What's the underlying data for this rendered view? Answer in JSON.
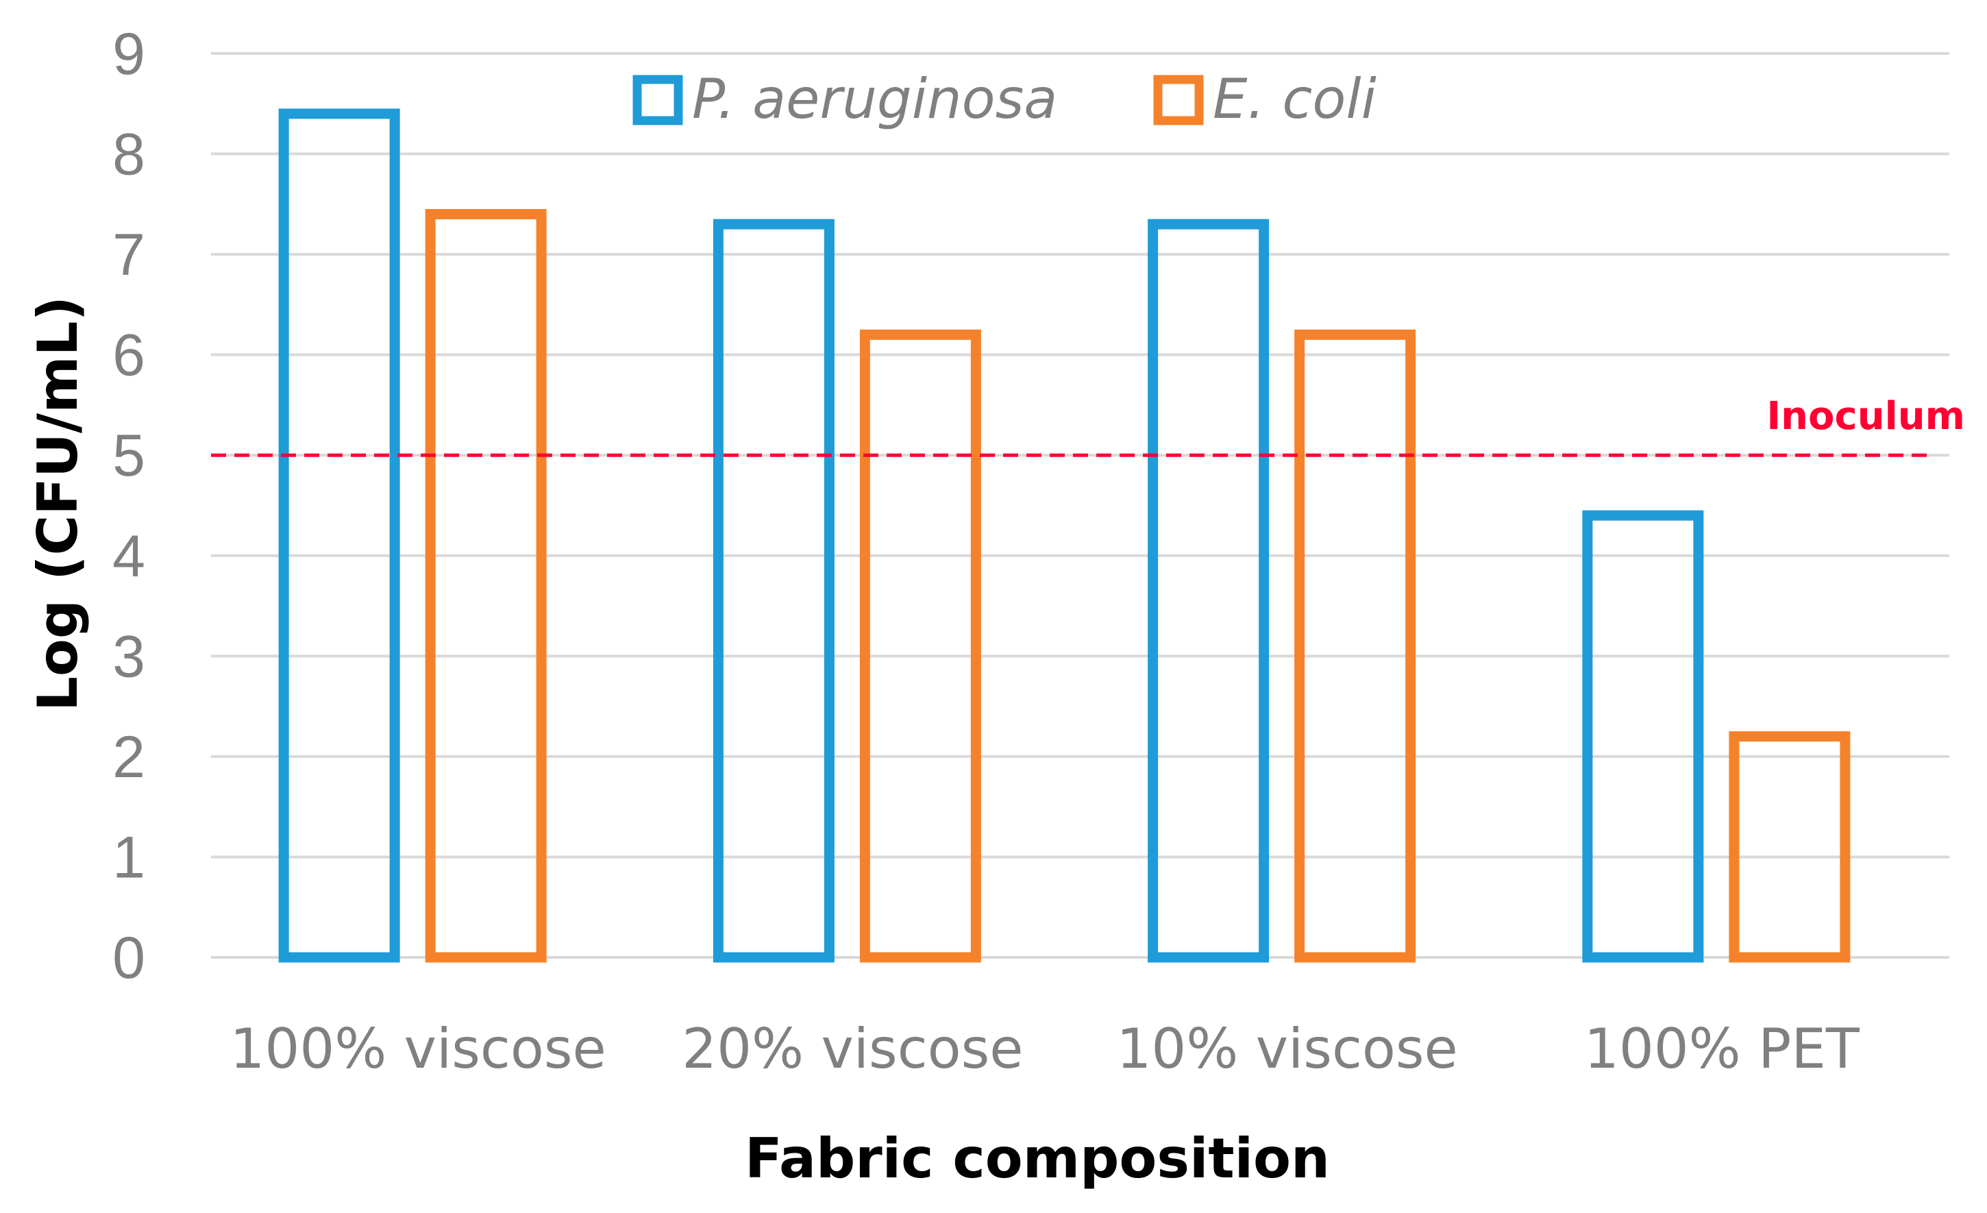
{
  "chart_data": {
    "type": "bar",
    "categories": [
      "100% viscose",
      "20% viscose",
      "10% viscose",
      "100% PET"
    ],
    "series": [
      {
        "name": "P. aeruginosa",
        "values": [
          8.4,
          7.3,
          7.3,
          4.4
        ],
        "color": "#1f9bd7"
      },
      {
        "name": "E. coli",
        "values": [
          7.4,
          6.2,
          6.2,
          2.2
        ],
        "color": "#f5822a"
      }
    ],
    "xlabel": "Fabric composition",
    "ylabel": "Log (CFU/mL)",
    "ylim": [
      0,
      9
    ],
    "yticks": [
      0,
      1,
      2,
      3,
      4,
      5,
      6,
      7,
      8,
      9
    ],
    "grid": true,
    "legend_position": "top-center",
    "bar_style": "outline",
    "reference_line": {
      "label": "Inoculum",
      "value": 5,
      "color": "#ff0033",
      "style": "dashed"
    }
  }
}
